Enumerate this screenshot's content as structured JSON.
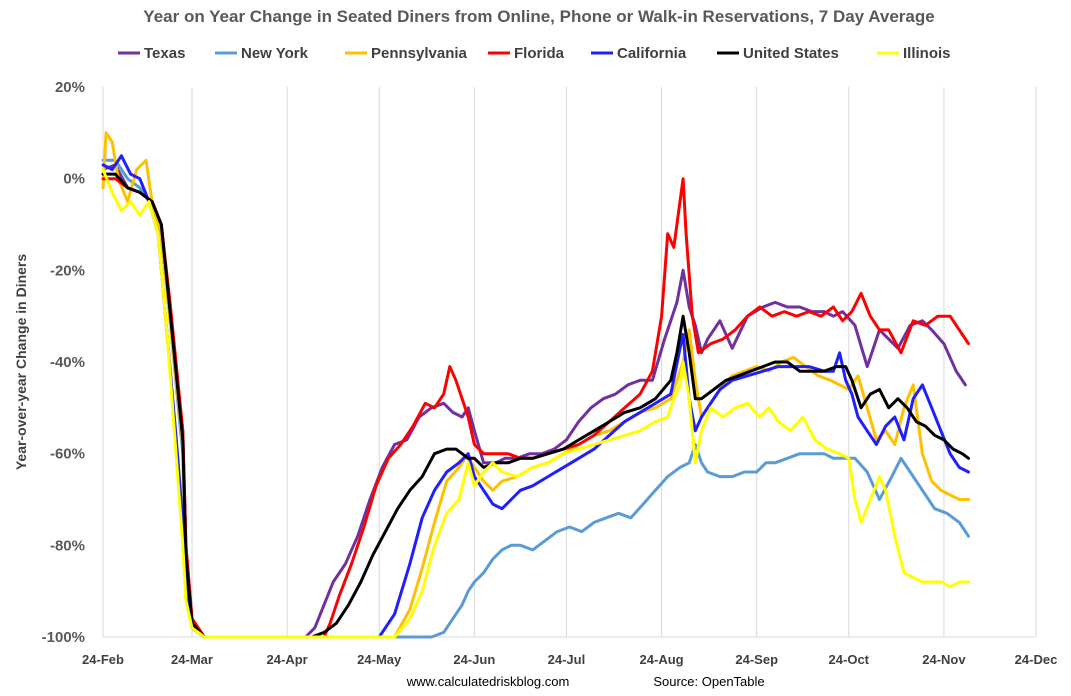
{
  "chart_data": {
    "type": "line",
    "title": "Year on Year Change in Seated Diners from Online, Phone or Walk-in Reservations, 7 Day Average",
    "ylabel": "Year-over-year Change in Diners",
    "xlabel": "",
    "ylim": [
      -100,
      20
    ],
    "y_ticks": [
      20,
      0,
      -20,
      -40,
      -60,
      -80,
      -100
    ],
    "y_tick_labels": [
      "20%",
      "0%",
      "-20%",
      "-40%",
      "-60%",
      "-80%",
      "-100%"
    ],
    "x_unit": "days since 24-Feb",
    "x_ticks": [
      0,
      29,
      60,
      90,
      121,
      151,
      182,
      213,
      243,
      274,
      304
    ],
    "x_tick_labels": [
      "24-Feb",
      "24-Mar",
      "24-Apr",
      "24-May",
      "24-Jun",
      "24-Jul",
      "24-Aug",
      "24-Sep",
      "24-Oct",
      "24-Nov",
      "24-Dec"
    ],
    "xlim": [
      0,
      304
    ],
    "grid": "vertical",
    "legend_position": "top",
    "footer_left": "www.calculatedriskblog.com",
    "footer_right": "Source: OpenTable",
    "series": [
      {
        "name": "Texas",
        "color": "#7030a0",
        "x": [
          0,
          4,
          8,
          12,
          16,
          19,
          22,
          26,
          27,
          29,
          33,
          66,
          69,
          72,
          75,
          79,
          83,
          87,
          91,
          95,
          99,
          103,
          107,
          111,
          114,
          117,
          119,
          121,
          124,
          128,
          131,
          135,
          139,
          143,
          147,
          151,
          155,
          159,
          163,
          167,
          171,
          175,
          179,
          183,
          187,
          189,
          191,
          193,
          195,
          197,
          201,
          205,
          210,
          215,
          219,
          223,
          227,
          231,
          235,
          238,
          241,
          245,
          249,
          253,
          256,
          259,
          263,
          267,
          270,
          274,
          278,
          281
        ],
        "values": [
          2,
          3,
          -2,
          -3,
          -5,
          -10,
          -30,
          -55,
          -80,
          -96,
          -100,
          -100,
          -98,
          -93,
          -88,
          -84,
          -78,
          -70,
          -63,
          -58,
          -57,
          -52,
          -50,
          -49,
          -51,
          -52,
          -50,
          -55,
          -62,
          -62,
          -61,
          -61,
          -60,
          -60,
          -59,
          -57,
          -53,
          -50,
          -48,
          -47,
          -45,
          -44,
          -44,
          -35,
          -27,
          -20,
          -28,
          -32,
          -38,
          -35,
          -31,
          -37,
          -30,
          -28,
          -27,
          -28,
          -28,
          -29,
          -29,
          -30,
          -29,
          -32,
          -41,
          -33,
          -35,
          -37,
          -32,
          -31,
          -33,
          -36,
          -42,
          -45
        ]
      },
      {
        "name": "New York",
        "color": "#5b9bd5",
        "x": [
          0,
          4,
          8,
          12,
          16,
          19,
          22,
          26,
          27,
          29,
          33,
          107,
          111,
          114,
          117,
          119,
          121,
          124,
          127,
          130,
          133,
          136,
          140,
          144,
          148,
          152,
          156,
          160,
          164,
          168,
          172,
          176,
          180,
          184,
          188,
          191,
          193,
          195,
          197,
          201,
          205,
          209,
          213,
          216,
          219,
          223,
          227,
          231,
          235,
          238,
          241,
          245,
          249,
          253,
          257,
          260,
          263,
          267,
          271,
          275,
          279,
          282
        ],
        "values": [
          4,
          4,
          0,
          -2,
          -6,
          -12,
          -32,
          -60,
          -85,
          -98,
          -100,
          -100,
          -99,
          -96,
          -93,
          -90,
          -88,
          -86,
          -83,
          -81,
          -80,
          -80,
          -81,
          -79,
          -77,
          -76,
          -77,
          -75,
          -74,
          -73,
          -74,
          -71,
          -68,
          -65,
          -63,
          -62,
          -58,
          -62,
          -64,
          -65,
          -65,
          -64,
          -64,
          -62,
          -62,
          -61,
          -60,
          -60,
          -60,
          -61,
          -61,
          -61,
          -64,
          -70,
          -65,
          -61,
          -64,
          -68,
          -72,
          -73,
          -75,
          -78
        ]
      },
      {
        "name": "Pennsylvania",
        "color": "#ffc000",
        "x": [
          0,
          1,
          3,
          5,
          8,
          11,
          14,
          16,
          19,
          22,
          26,
          27,
          29,
          33,
          95,
          100,
          104,
          108,
          112,
          116,
          118,
          119,
          121,
          124,
          127,
          130,
          135,
          140,
          145,
          150,
          155,
          160,
          165,
          170,
          175,
          180,
          185,
          189,
          191,
          193,
          195,
          197,
          201,
          205,
          209,
          213,
          217,
          221,
          225,
          229,
          233,
          237,
          240,
          243,
          246,
          249,
          252,
          255,
          258,
          261,
          264,
          267,
          270,
          273,
          276,
          279,
          282
        ],
        "values": [
          -2,
          10,
          8,
          0,
          -5,
          2,
          4,
          -5,
          -12,
          -32,
          -58,
          -82,
          -98,
          -100,
          -100,
          -94,
          -85,
          -75,
          -66,
          -63,
          -61,
          -61,
          -63,
          -66,
          -68,
          -66,
          -65,
          -63,
          -62,
          -60,
          -58,
          -56,
          -55,
          -53,
          -51,
          -50,
          -48,
          -40,
          -33,
          -44,
          -52,
          -50,
          -46,
          -43,
          -42,
          -41,
          -42,
          -40,
          -39,
          -41,
          -43,
          -44,
          -45,
          -46,
          -43,
          -50,
          -57,
          -55,
          -58,
          -50,
          -45,
          -60,
          -66,
          -68,
          -69,
          -70,
          -70
        ]
      },
      {
        "name": "Florida",
        "color": "#ff0000",
        "x": [
          0,
          4,
          8,
          12,
          16,
          19,
          22,
          26,
          27,
          29,
          33,
          72,
          74,
          77,
          81,
          85,
          89,
          93,
          97,
          101,
          105,
          108,
          111,
          113,
          115,
          117,
          119,
          121,
          124,
          128,
          132,
          136,
          140,
          145,
          150,
          155,
          160,
          165,
          170,
          175,
          179,
          182,
          184,
          186,
          188,
          189,
          190,
          192,
          194,
          196,
          198,
          202,
          206,
          210,
          214,
          218,
          222,
          226,
          230,
          234,
          238,
          241,
          244,
          247,
          250,
          253,
          256,
          260,
          264,
          268,
          272,
          276,
          279,
          282
        ],
        "values": [
          0,
          0,
          -2,
          -3,
          -5,
          -10,
          -28,
          -55,
          -80,
          -96,
          -100,
          -100,
          -97,
          -91,
          -84,
          -76,
          -67,
          -61,
          -58,
          -54,
          -49,
          -50,
          -47,
          -41,
          -44,
          -48,
          -52,
          -58,
          -60,
          -60,
          -60,
          -61,
          -61,
          -60,
          -59,
          -58,
          -56,
          -53,
          -50,
          -47,
          -42,
          -30,
          -12,
          -15,
          -5,
          0,
          -12,
          -30,
          -38,
          -37,
          -36,
          -35,
          -33,
          -30,
          -28,
          -30,
          -29,
          -30,
          -29,
          -30,
          -28,
          -31,
          -29,
          -25,
          -30,
          -33,
          -33,
          -38,
          -31,
          -32,
          -30,
          -30,
          -33,
          -36
        ]
      },
      {
        "name": "California",
        "color": "#1f1fff",
        "x": [
          0,
          3,
          6,
          9,
          12,
          15,
          18,
          21,
          24,
          26,
          27,
          29,
          33,
          90,
          95,
          100,
          104,
          108,
          112,
          116,
          119,
          121,
          124,
          127,
          130,
          133,
          136,
          140,
          145,
          150,
          155,
          160,
          165,
          170,
          175,
          180,
          185,
          188,
          189,
          191,
          193,
          195,
          197,
          201,
          205,
          210,
          215,
          220,
          225,
          230,
          235,
          238,
          240,
          242,
          244,
          246,
          249,
          252,
          255,
          258,
          261,
          264,
          267,
          270,
          273,
          276,
          279,
          282
        ],
        "values": [
          3,
          2,
          5,
          1,
          0,
          -5,
          -12,
          -35,
          -58,
          -75,
          -88,
          -98,
          -100,
          -100,
          -95,
          -84,
          -74,
          -68,
          -64,
          -62,
          -60,
          -65,
          -68,
          -71,
          -72,
          -70,
          -68,
          -67,
          -65,
          -63,
          -61,
          -59,
          -56,
          -53,
          -51,
          -49,
          -47,
          -37,
          -34,
          -48,
          -55,
          -52,
          -50,
          -46,
          -44,
          -43,
          -42,
          -41,
          -41,
          -41,
          -42,
          -42,
          -38,
          -44,
          -47,
          -52,
          -55,
          -58,
          -54,
          -52,
          -57,
          -48,
          -45,
          -50,
          -55,
          -60,
          -63,
          -64
        ]
      },
      {
        "name": "United States",
        "color": "#000000",
        "x": [
          0,
          4,
          8,
          12,
          16,
          19,
          22,
          26,
          27,
          29,
          33,
          68,
          72,
          76,
          80,
          84,
          88,
          92,
          96,
          100,
          104,
          108,
          112,
          115,
          117,
          119,
          121,
          124,
          128,
          132,
          136,
          140,
          145,
          150,
          155,
          160,
          165,
          170,
          175,
          180,
          185,
          187,
          189,
          191,
          193,
          195,
          199,
          203,
          207,
          211,
          215,
          219,
          223,
          227,
          231,
          235,
          239,
          242,
          244,
          247,
          250,
          253,
          256,
          259,
          262,
          265,
          268,
          271,
          274,
          277,
          280,
          282
        ],
        "values": [
          1,
          1,
          -2,
          -3,
          -5,
          -10,
          -30,
          -57,
          -82,
          -97,
          -100,
          -100,
          -99,
          -97,
          -93,
          -88,
          -82,
          -77,
          -72,
          -68,
          -65,
          -60,
          -59,
          -59,
          -60,
          -61,
          -61,
          -63,
          -62,
          -62,
          -61,
          -61,
          -60,
          -59,
          -57,
          -55,
          -53,
          -51,
          -50,
          -48,
          -44,
          -38,
          -30,
          -38,
          -48,
          -48,
          -46,
          -44,
          -43,
          -42,
          -41,
          -40,
          -40,
          -42,
          -42,
          -42,
          -41,
          -41,
          -44,
          -50,
          -47,
          -46,
          -50,
          -48,
          -50,
          -53,
          -54,
          -56,
          -57,
          -59,
          -60,
          -61
        ]
      },
      {
        "name": "Illinois",
        "color": "#ffff00",
        "x": [
          0,
          3,
          6,
          9,
          12,
          15,
          18,
          21,
          24,
          26,
          27,
          29,
          33,
          95,
          100,
          104,
          108,
          112,
          116,
          119,
          121,
          124,
          127,
          130,
          135,
          140,
          145,
          150,
          155,
          160,
          165,
          170,
          175,
          180,
          184,
          186,
          188,
          189,
          191,
          193,
          195,
          198,
          202,
          206,
          210,
          214,
          217,
          220,
          224,
          228,
          232,
          236,
          240,
          243,
          245,
          247,
          250,
          253,
          255,
          258,
          261,
          264,
          267,
          270,
          273,
          276,
          279,
          282
        ],
        "values": [
          2,
          -3,
          -7,
          -5,
          -8,
          -5,
          -12,
          -35,
          -62,
          -80,
          -92,
          -98,
          -100,
          -100,
          -96,
          -90,
          -80,
          -73,
          -70,
          -62,
          -67,
          -64,
          -62,
          -64,
          -65,
          -63,
          -62,
          -60,
          -59,
          -58,
          -57,
          -56,
          -55,
          -53,
          -52,
          -48,
          -45,
          -40,
          -48,
          -62,
          -55,
          -50,
          -52,
          -50,
          -49,
          -52,
          -50,
          -53,
          -55,
          -52,
          -57,
          -59,
          -60,
          -61,
          -70,
          -75,
          -70,
          -65,
          -68,
          -78,
          -86,
          -87,
          -88,
          -88,
          -88,
          -89,
          -88,
          -88
        ]
      }
    ]
  }
}
